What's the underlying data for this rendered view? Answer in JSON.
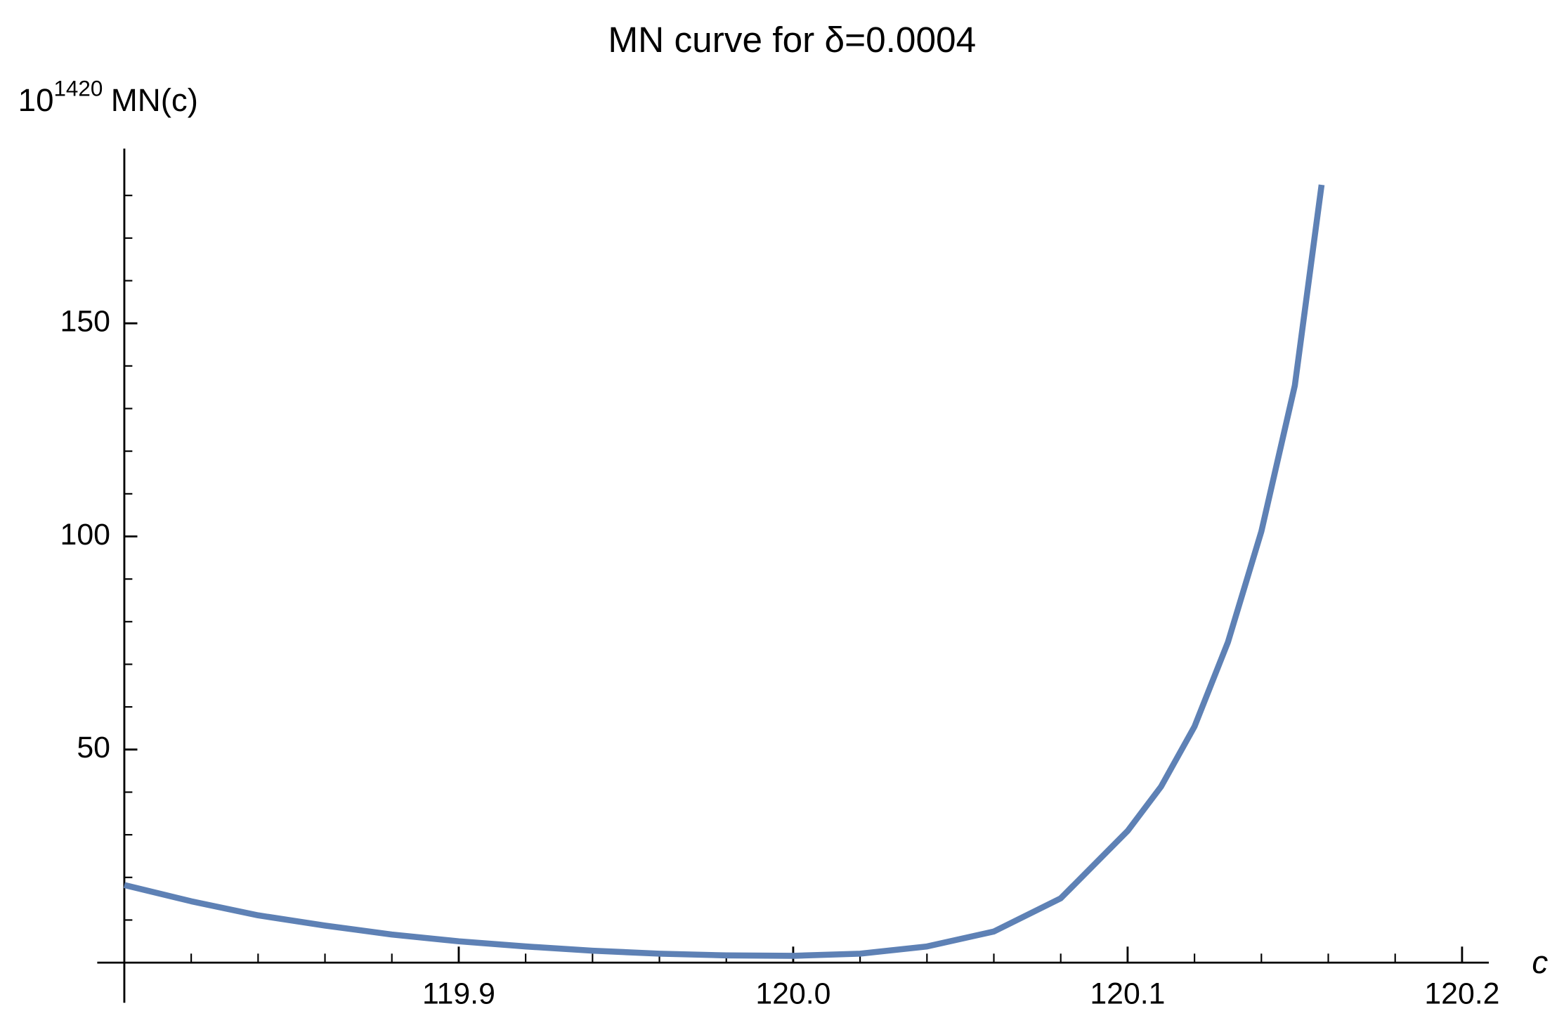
{
  "chart_data": {
    "type": "line",
    "title": "MN curve for δ=0.0004",
    "y_label_base": "10",
    "y_label_exponent": "1420",
    "y_label": "MN(c)",
    "x_label": "c",
    "xlim": [
      119.8,
      120.208
    ],
    "ylim": [
      0,
      191
    ],
    "xticks": [
      119.9,
      {
        "value": 120,
        "label": "120.0"
      },
      120.1,
      120.2
    ],
    "yticks": [
      50,
      100,
      150
    ],
    "x_minor_ticks": [
      119.82,
      119.84,
      119.86,
      119.88,
      119.92,
      119.94,
      119.96,
      119.98,
      120.02,
      120.04,
      120.06,
      120.08,
      120.12,
      120.14,
      120.16,
      120.18
    ],
    "y_minor_ticks": [
      10,
      20,
      30,
      40,
      60,
      70,
      80,
      90,
      110,
      120,
      130,
      140,
      160,
      170,
      180
    ],
    "series": [
      {
        "color": "#5e81b5",
        "x": [
          119.8,
          119.82,
          119.84,
          119.86,
          119.88,
          119.9,
          119.92,
          119.94,
          119.96,
          119.98,
          120.0,
          120.02,
          120.04,
          120.06,
          120.08,
          120.1,
          120.11,
          120.12,
          120.13,
          120.14,
          120.15,
          120.158
        ],
        "values": [
          18.2,
          14.4,
          11.1,
          8.7,
          6.6,
          5.0,
          3.8,
          2.8,
          2.1,
          1.7,
          1.6,
          2.1,
          3.8,
          7.3,
          15.1,
          30.9,
          41.3,
          55.4,
          75.2,
          101.2,
          135.4,
          182.5
        ]
      }
    ]
  }
}
